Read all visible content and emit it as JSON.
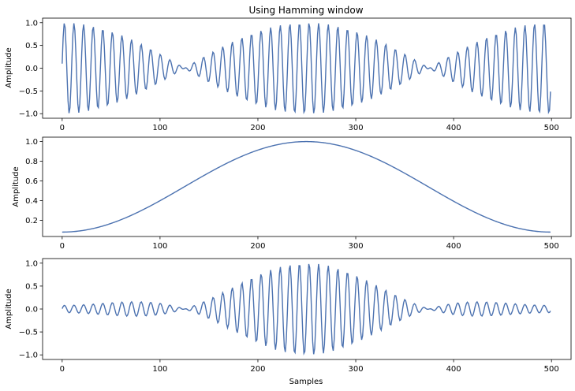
{
  "figure": {
    "title": "Using Hamming window"
  },
  "chart_data": [
    {
      "type": "line",
      "title": "Using Hamming window",
      "xlabel": "",
      "ylabel": "Amplitude",
      "xlim": [
        -20,
        520
      ],
      "ylim": [
        -1.1,
        1.1
      ],
      "x_ticks": [
        0,
        100,
        200,
        300,
        400,
        500
      ],
      "x_tick_labels": [
        "0",
        "100",
        "200",
        "300",
        "400",
        "500"
      ],
      "y_ticks": [
        1.0,
        0.5,
        0.0,
        -0.5,
        -1.0
      ],
      "y_tick_labels": [
        "1.0",
        "0.5",
        "0.0",
        "−0.5",
        "−1.0"
      ],
      "grid": false,
      "series": [
        {
          "signal": "sum of two sinusoids (beating)",
          "n_samples": 500,
          "x_range": [
            0,
            499
          ],
          "components": [
            {
              "amplitude": 0.5,
              "cycles_per_sample": 0.1,
              "phase": 0.1
            },
            {
              "amplitude": 0.5,
              "cycles_per_sample": 0.104,
              "phase": 0.1
            }
          ],
          "approx_range": [
            -1.0,
            1.0
          ],
          "color": "#4c72b0"
        }
      ]
    },
    {
      "type": "line",
      "title": "",
      "xlabel": "",
      "ylabel": "Amplitude",
      "xlim": [
        -20,
        520
      ],
      "ylim": [
        0.035,
        1.045
      ],
      "x_ticks": [
        0,
        100,
        200,
        300,
        400,
        500
      ],
      "x_tick_labels": [
        "0",
        "100",
        "200",
        "300",
        "400",
        "500"
      ],
      "y_ticks": [
        1.0,
        0.8,
        0.6,
        0.4,
        0.2
      ],
      "y_tick_labels": [
        "1.0",
        "0.8",
        "0.6",
        "0.4",
        "0.2"
      ],
      "grid": false,
      "series": [
        {
          "signal": "Hamming window",
          "n_samples": 500,
          "x_range": [
            0,
            499
          ],
          "formula": "0.54 - 0.46*cos(2*pi*n/(N-1))",
          "min": 0.08,
          "max": 1.0,
          "peak_at_x": 249.5,
          "color": "#4c72b0"
        }
      ]
    },
    {
      "type": "line",
      "title": "",
      "xlabel": "Samples",
      "ylabel": "Amplitude",
      "xlim": [
        -20,
        520
      ],
      "ylim": [
        -1.1,
        1.1
      ],
      "x_ticks": [
        0,
        100,
        200,
        300,
        400,
        500
      ],
      "x_tick_labels": [
        "0",
        "100",
        "200",
        "300",
        "400",
        "500"
      ],
      "y_ticks": [
        1.0,
        0.5,
        0.0,
        -0.5,
        -1.0
      ],
      "y_tick_labels": [
        "1.0",
        "0.5",
        "0.0",
        "−0.5",
        "−1.0"
      ],
      "grid": false,
      "series": [
        {
          "signal": "signal multiplied by Hamming window",
          "n_samples": 500,
          "x_range": [
            0,
            499
          ],
          "approx_range": [
            -1.0,
            1.0
          ],
          "color": "#4c72b0"
        }
      ]
    }
  ],
  "style": {
    "line_color": "#4c72b0",
    "axis_color": "#000000",
    "background": "#ffffff"
  }
}
